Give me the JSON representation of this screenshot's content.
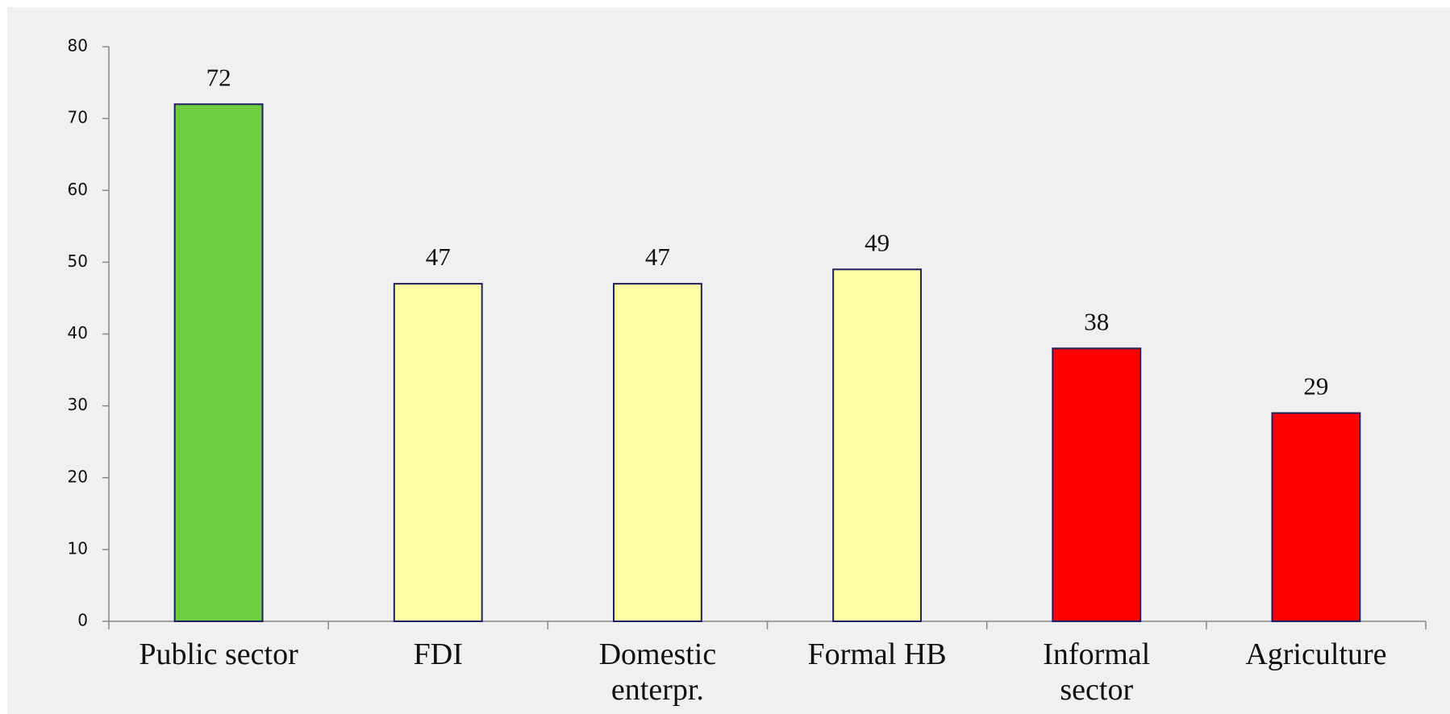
{
  "chart_data": {
    "type": "bar",
    "categories": [
      "Public sector",
      "FDI",
      "Domestic\nenterpr.",
      "Formal HB",
      "Informal\nsector",
      "Agriculture"
    ],
    "values": [
      72,
      47,
      47,
      49,
      38,
      29
    ],
    "colors": [
      "#70cc40",
      "#ffffa8",
      "#ffffa8",
      "#ffffa8",
      "#ff0000",
      "#ff0000"
    ],
    "ylim": [
      0,
      80
    ],
    "yticks": [
      0,
      10,
      20,
      30,
      40,
      50,
      60,
      70,
      80
    ],
    "grid": false
  }
}
